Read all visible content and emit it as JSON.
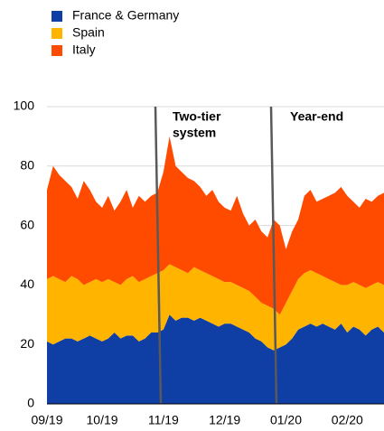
{
  "chart_data": {
    "type": "stacked_area",
    "categories": [
      "09/19",
      null,
      null,
      null,
      null,
      null,
      null,
      null,
      null,
      "10/19",
      null,
      null,
      null,
      null,
      null,
      null,
      null,
      null,
      null,
      "11/19",
      null,
      null,
      null,
      null,
      null,
      null,
      null,
      null,
      null,
      "12/19",
      null,
      null,
      null,
      null,
      null,
      null,
      null,
      null,
      null,
      "01/20",
      null,
      null,
      null,
      null,
      null,
      null,
      null,
      null,
      null,
      "02/20",
      null,
      null,
      null,
      null,
      null,
      null
    ],
    "series": [
      {
        "name": "France & Germany",
        "color": "#0f3ea4",
        "values": [
          21,
          20,
          21,
          22,
          22,
          21,
          22,
          23,
          22,
          21,
          22,
          24,
          22,
          23,
          23,
          21,
          22,
          24,
          24,
          25,
          30,
          28,
          29,
          29,
          28,
          29,
          28,
          27,
          26,
          27,
          27,
          26,
          25,
          24,
          22,
          21,
          19,
          18,
          19,
          20,
          22,
          25,
          26,
          27,
          26,
          27,
          26,
          25,
          27,
          24,
          26,
          25,
          23,
          25,
          26,
          24
        ]
      },
      {
        "name": "Spain",
        "color": "#ffb400",
        "values": [
          21,
          23,
          21,
          19,
          21,
          21,
          18,
          18,
          20,
          20,
          20,
          17,
          18,
          19,
          20,
          20,
          20,
          19,
          20,
          20,
          17,
          18,
          16,
          15,
          18,
          16,
          16,
          16,
          16,
          14,
          14,
          14,
          14,
          14,
          14,
          13,
          14,
          14,
          11,
          14,
          16,
          17,
          18,
          18,
          18,
          16,
          16,
          16,
          13,
          16,
          15,
          15,
          16,
          15,
          15,
          16
        ]
      },
      {
        "name": "Italy",
        "color": "#ff4b00",
        "values": [
          30,
          37,
          35,
          34,
          30,
          27,
          35,
          31,
          26,
          25,
          28,
          24,
          28,
          30,
          23,
          29,
          26,
          27,
          27,
          33,
          43,
          34,
          33,
          32,
          29,
          28,
          26,
          29,
          26,
          25,
          24,
          30,
          25,
          22,
          26,
          24,
          23,
          30,
          30,
          18,
          20,
          20,
          26,
          27,
          24,
          26,
          28,
          30,
          33,
          30,
          27,
          26,
          30,
          28,
          29,
          31
        ]
      }
    ],
    "ylim": [
      0,
      100
    ],
    "yticks": [
      0,
      20,
      40,
      60,
      80,
      100
    ],
    "grid": true,
    "annotations": [
      "Two-tier",
      "system",
      "Year-end"
    ]
  }
}
